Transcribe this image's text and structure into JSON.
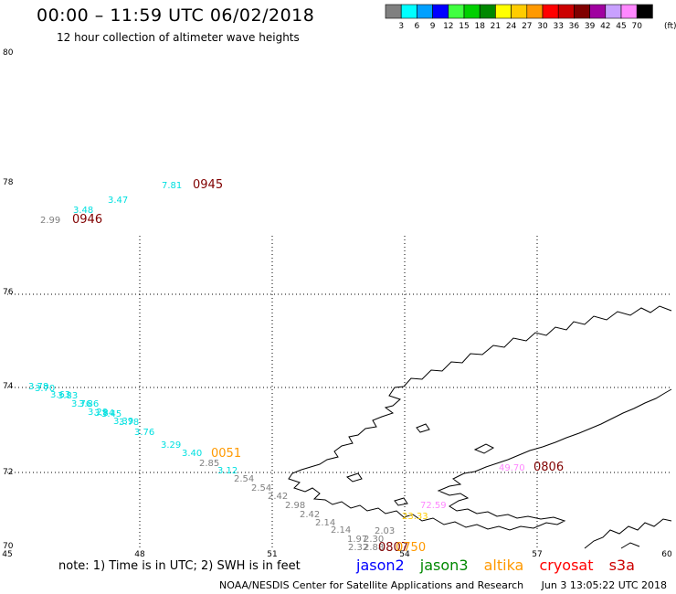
{
  "header": {
    "title": "00:00 – 11:59 UTC 06/02/2018",
    "subtitle": "12 hour collection of altimeter wave heights"
  },
  "legend": {
    "unit": "(ft)",
    "bins": [
      {
        "label": "3",
        "color": "#808080"
      },
      {
        "label": "6",
        "color": "#00ffff"
      },
      {
        "label": "9",
        "color": "#00a0ff"
      },
      {
        "label": "12",
        "color": "#0000ff"
      },
      {
        "label": "15",
        "color": "#40ff40"
      },
      {
        "label": "18",
        "color": "#00d000"
      },
      {
        "label": "21",
        "color": "#008800"
      },
      {
        "label": "24",
        "color": "#ffff00"
      },
      {
        "label": "27",
        "color": "#ffcc00"
      },
      {
        "label": "30",
        "color": "#ff9900"
      },
      {
        "label": "33",
        "color": "#ff0000"
      },
      {
        "label": "36",
        "color": "#cc0000"
      },
      {
        "label": "39",
        "color": "#800000"
      },
      {
        "label": "42",
        "color": "#a000a0"
      },
      {
        "label": "45",
        "color": "#c8a0ff"
      },
      {
        "label": "70",
        "color": "#ff88ff"
      },
      {
        "label": "",
        "color": "#000000"
      }
    ]
  },
  "axes": {
    "lon_labels": [
      "45",
      "48",
      "51",
      "54",
      "57",
      "60"
    ],
    "lat_labels": [
      "80",
      "78",
      "76",
      "74",
      "72",
      "70"
    ]
  },
  "observations": [
    {
      "text": "2.99",
      "color": "#808080"
    },
    {
      "text": "0946",
      "color": "#800000"
    },
    {
      "text": "3.48",
      "color": "#00e0e0"
    },
    {
      "text": "3.47",
      "color": "#00e0e0"
    },
    {
      "text": "7.81",
      "color": "#00e0e0"
    },
    {
      "text": "0945",
      "color": "#800000"
    },
    {
      "text": "3.78",
      "color": "#00e0e0"
    },
    {
      "text": "3.70",
      "color": "#00e0e0"
    },
    {
      "text": "3.63",
      "color": "#00e0e0"
    },
    {
      "text": "3.83",
      "color": "#00e0e0"
    },
    {
      "text": "3.76",
      "color": "#00e0e0"
    },
    {
      "text": "3.86",
      "color": "#00e0e0"
    },
    {
      "text": "3.29",
      "color": "#00e0e0"
    },
    {
      "text": "3.84",
      "color": "#00e0e0"
    },
    {
      "text": "3.45",
      "color": "#00e0e0"
    },
    {
      "text": "3.39",
      "color": "#00e0e0"
    },
    {
      "text": "3.78",
      "color": "#00e0e0"
    },
    {
      "text": "3.76",
      "color": "#00e0e0"
    },
    {
      "text": "3.29",
      "color": "#00e0e0"
    },
    {
      "text": "3.40",
      "color": "#00e0e0"
    },
    {
      "text": "0051",
      "color": "#ff9900"
    },
    {
      "text": "2.85",
      "color": "#808080"
    },
    {
      "text": "3.12",
      "color": "#00e0e0"
    },
    {
      "text": "2.54",
      "color": "#808080"
    },
    {
      "text": "2.54",
      "color": "#808080"
    },
    {
      "text": "2.42",
      "color": "#808080"
    },
    {
      "text": "2.98",
      "color": "#808080"
    },
    {
      "text": "2.42",
      "color": "#808080"
    },
    {
      "text": "2.14",
      "color": "#808080"
    },
    {
      "text": "2.14",
      "color": "#808080"
    },
    {
      "text": "2.03",
      "color": "#808080"
    },
    {
      "text": "1.97",
      "color": "#808080"
    },
    {
      "text": "2.30",
      "color": "#808080"
    },
    {
      "text": "2.32",
      "color": "#808080"
    },
    {
      "text": "2.88",
      "color": "#808080"
    },
    {
      "text": "0807",
      "color": "#800000"
    },
    {
      "text": "0750",
      "color": "#ff9900"
    },
    {
      "text": "72.59",
      "color": "#ff88ff"
    },
    {
      "text": "23.33",
      "color": "#ffcc00"
    },
    {
      "text": "49.70",
      "color": "#ff88ff"
    },
    {
      "text": "0806",
      "color": "#800000"
    }
  ],
  "note": "note:  1) Time is in UTC;  2) SWH is in feet",
  "satellites": [
    {
      "name": "jason2",
      "color": "#0000ff"
    },
    {
      "name": "jason3",
      "color": "#008800"
    },
    {
      "name": "altika",
      "color": "#ff9900"
    },
    {
      "name": "cryosat",
      "color": "#ff0000"
    },
    {
      "name": "s3a",
      "color": "#cc0000"
    }
  ],
  "footer": {
    "center": "NOAA/NESDIS Center for Satellite Applications and Research",
    "timestamp": "Jun  3 13:05:22 UTC 2018"
  }
}
